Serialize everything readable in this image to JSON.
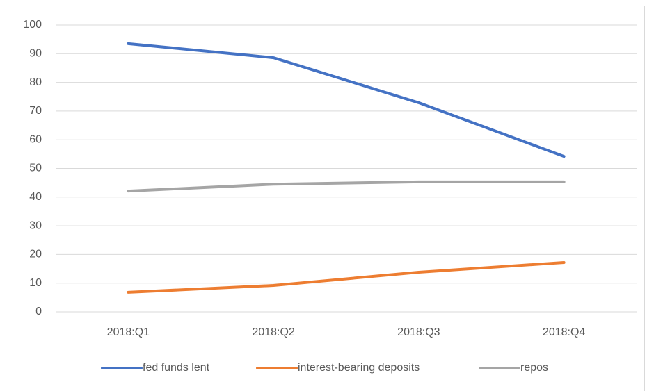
{
  "chart_data": {
    "type": "line",
    "categories": [
      "2018:Q1",
      "2018:Q2",
      "2018:Q3",
      "2018:Q4"
    ],
    "series": [
      {
        "name": "fed funds lent",
        "color": "#4472c4",
        "values": [
          93.5,
          88.6,
          72.9,
          54.2
        ]
      },
      {
        "name": "interest-bearing deposits",
        "color": "#ed7d31",
        "values": [
          6.8,
          9.2,
          13.8,
          17.2
        ]
      },
      {
        "name": "repos",
        "color": "#a5a5a5",
        "values": [
          42.1,
          44.5,
          45.3,
          45.3
        ]
      }
    ],
    "ylim": [
      0,
      100
    ],
    "yticks": [
      0,
      10,
      20,
      30,
      40,
      50,
      60,
      70,
      80,
      90,
      100
    ],
    "grid": true,
    "legend": "bottom"
  }
}
